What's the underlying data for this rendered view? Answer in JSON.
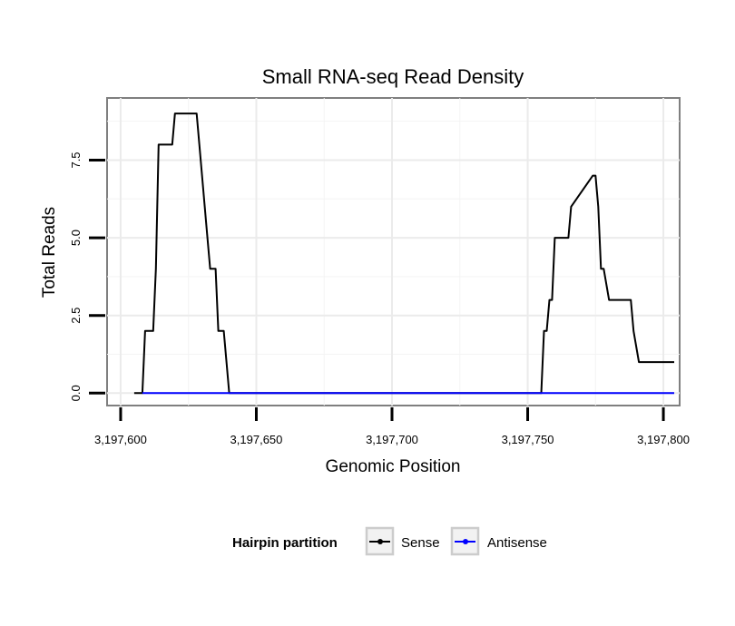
{
  "chart_data": {
    "type": "line",
    "title": "Small RNA-seq Read Density",
    "xlabel": "Genomic Position",
    "ylabel": "Total Reads",
    "xlim": [
      3197595,
      3197806
    ],
    "ylim": [
      -0.4,
      9.5
    ],
    "x_ticks": [
      3197600,
      3197650,
      3197700,
      3197750,
      3197800
    ],
    "x_tick_labels": [
      "3,197,600",
      "3,197,650",
      "3,197,700",
      "3,197,750",
      "3,197,800"
    ],
    "y_ticks": [
      0,
      2.5,
      5,
      7.5
    ],
    "y_tick_labels": [
      "0.0",
      "2.5",
      "5.0",
      "7.5"
    ],
    "grid": true,
    "legend": {
      "title": "Hairpin partition",
      "position": "bottom",
      "entries": [
        "Sense",
        "Antisense"
      ]
    },
    "series": [
      {
        "name": "Sense",
        "color": "#000000",
        "x": [
          3197605,
          3197608,
          3197609,
          3197612,
          3197613,
          3197614,
          3197619,
          3197620,
          3197628,
          3197629,
          3197632,
          3197633,
          3197635,
          3197636,
          3197638,
          3197640,
          3197755,
          3197756,
          3197757,
          3197758,
          3197759,
          3197760,
          3197765,
          3197766,
          3197774,
          3197775,
          3197776,
          3197777,
          3197778,
          3197780,
          3197787,
          3197788,
          3197789,
          3197791,
          3197804
        ],
        "y": [
          0,
          0,
          2,
          2,
          4,
          8,
          8,
          9,
          9,
          8,
          5,
          4,
          4,
          2,
          2,
          0,
          0,
          2,
          2,
          3,
          3,
          5,
          5,
          6,
          7,
          7,
          6,
          4,
          4,
          3,
          3,
          3,
          2,
          1,
          1
        ]
      },
      {
        "name": "Antisense",
        "color": "#0000ff",
        "x": [
          3197608,
          3197804
        ],
        "y": [
          0,
          0
        ]
      }
    ]
  }
}
